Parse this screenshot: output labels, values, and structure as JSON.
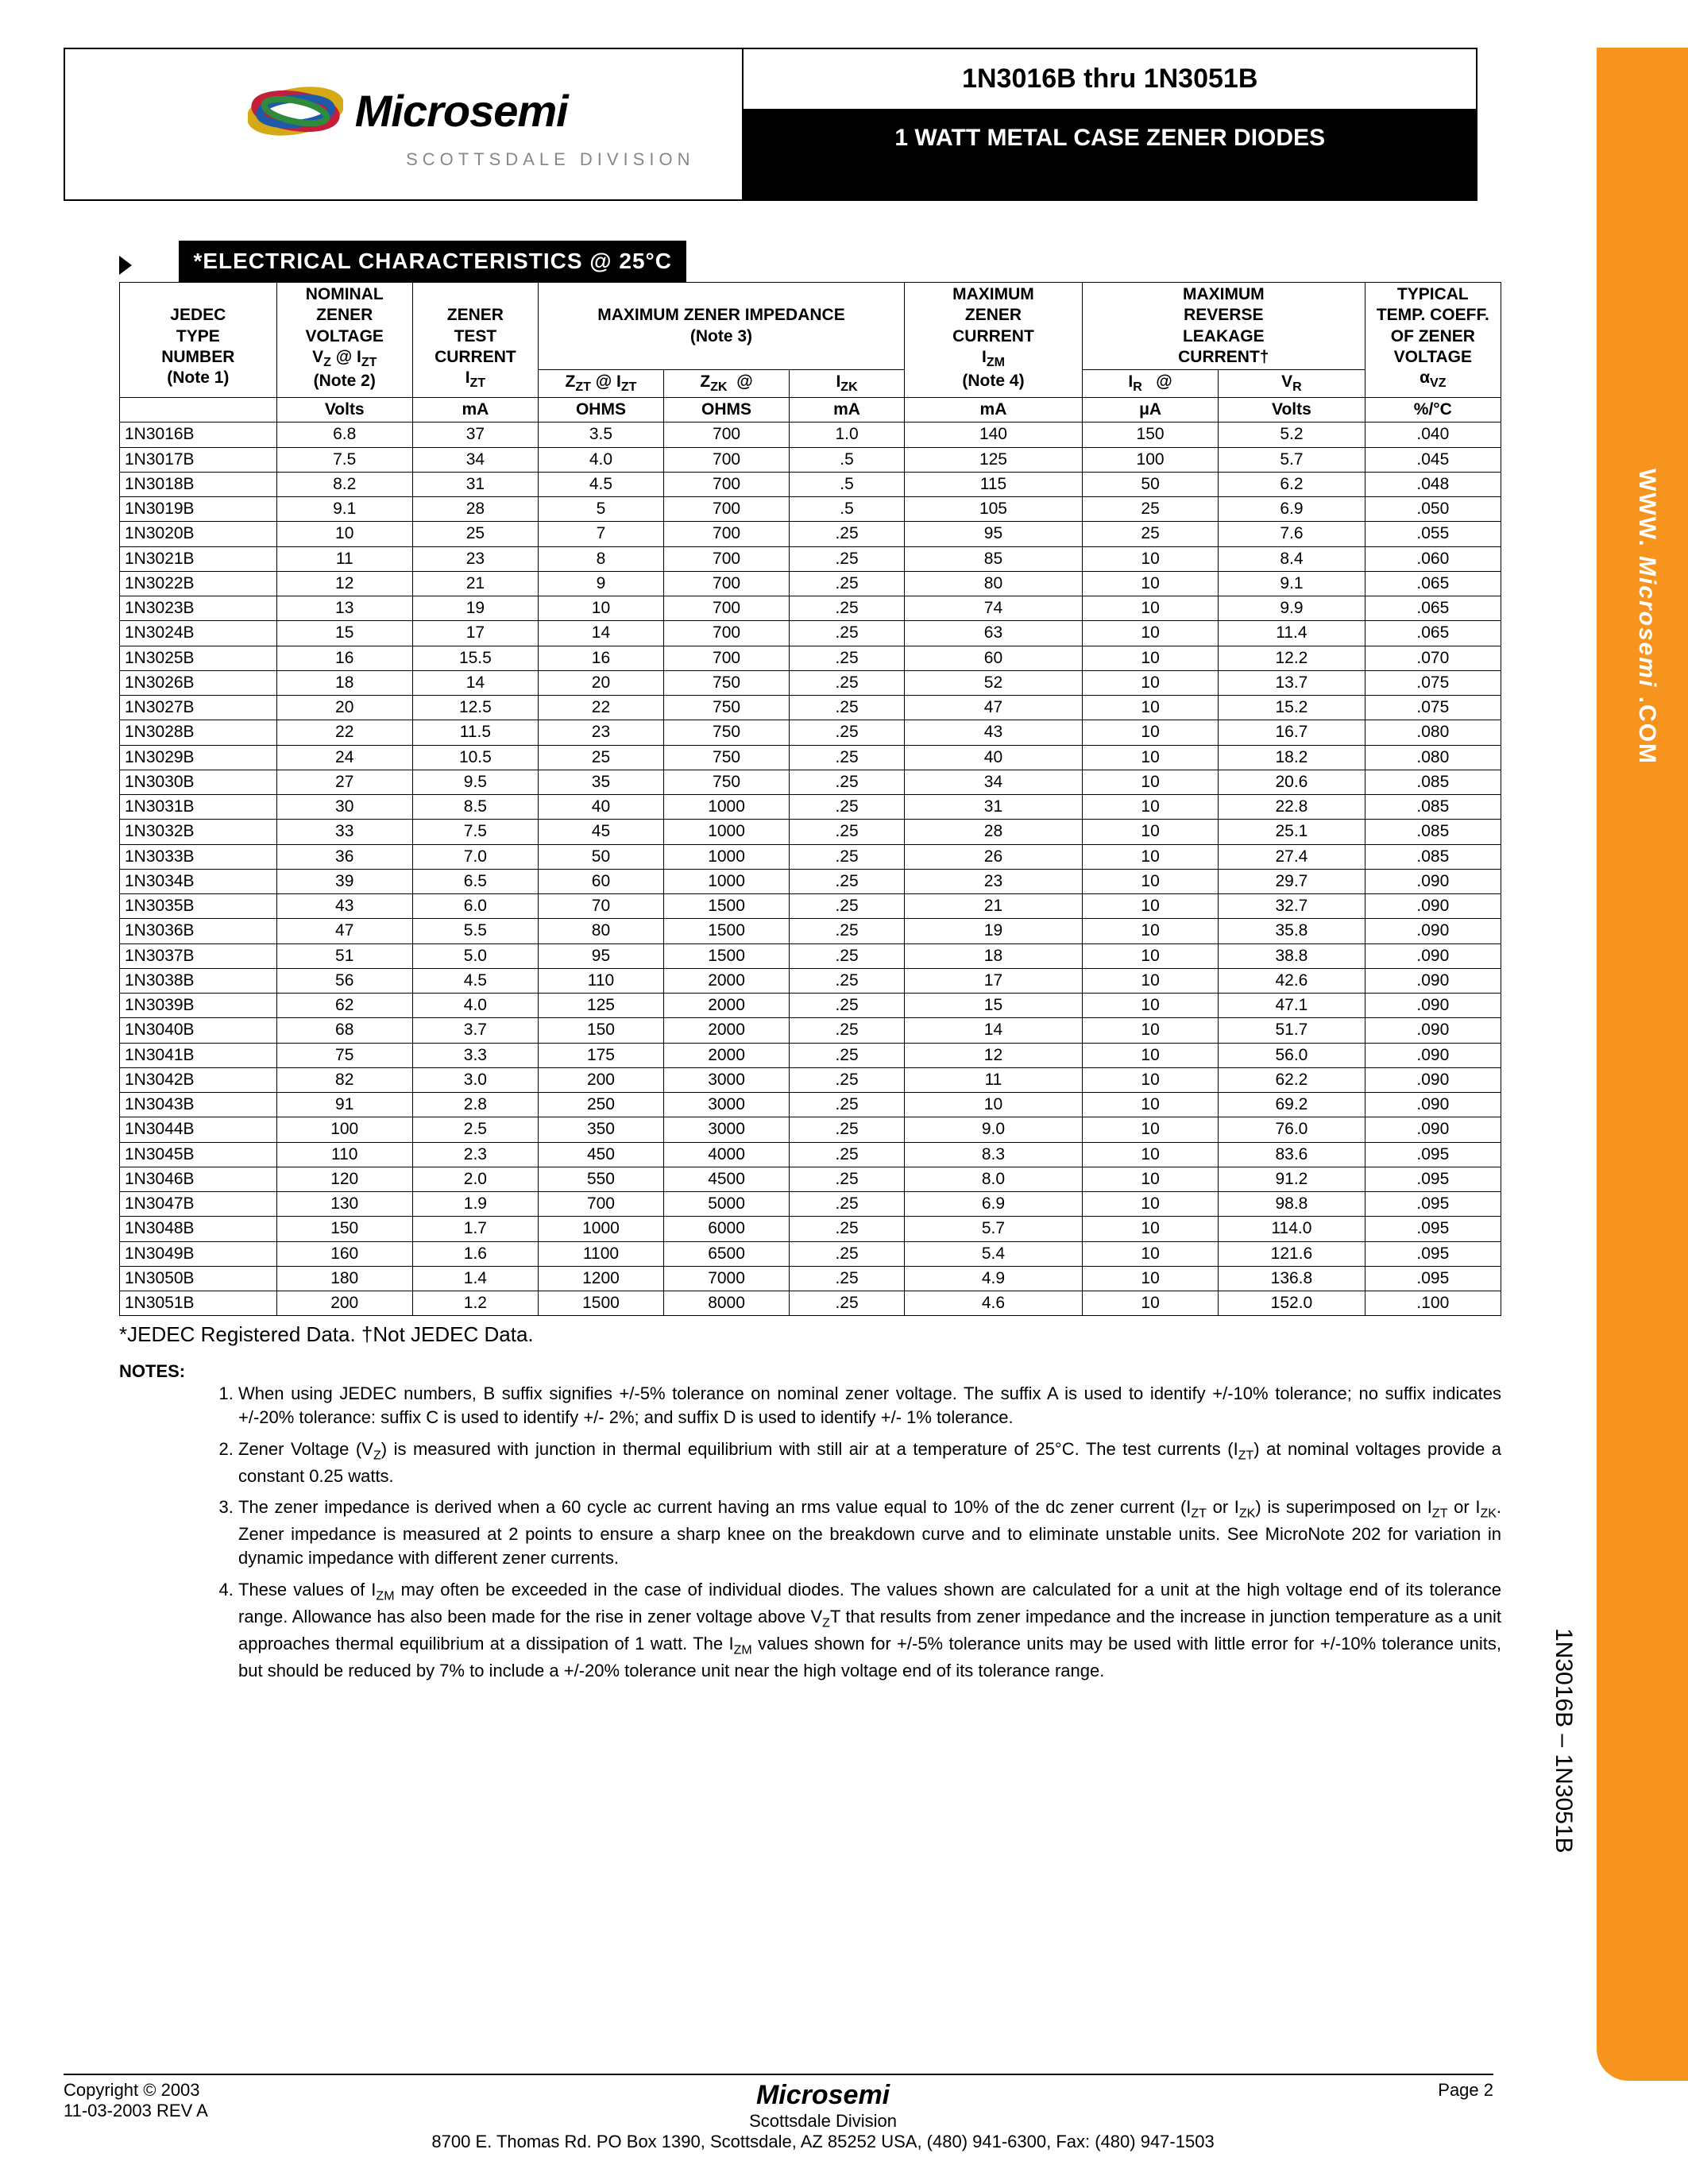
{
  "header": {
    "brand": "Microsemi",
    "division": "SCOTTSDALE DIVISION",
    "title": "1N3016B thru 1N3051B",
    "subtitle": "1 WATT METAL CASE ZENER DIODES"
  },
  "sidebar": {
    "url_www": "WWW.",
    "url_brand": "Microsemi",
    "url_com": ".COM",
    "part_range": "1N3016B – 1N3051B"
  },
  "section": {
    "title": "*ELECTRICAL CHARACTERISTICS @ 25°C"
  },
  "table": {
    "col_headers": {
      "jedec": "JEDEC TYPE NUMBER (Note 1)",
      "vz": "NOMINAL ZENER VOLTAGE",
      "vz_sub": "V_Z @ I_ZT (Note 2)",
      "izt": "ZENER TEST CURRENT",
      "izt_sub": "I_ZT",
      "mzi": "MAXIMUM ZENER IMPEDANCE (Note 3)",
      "zzt": "Z_ZT @ I_ZT",
      "zzk": "Z_ZK  @  I_ZK",
      "izm": "MAXIMUM ZENER CURRENT",
      "izm_sub": "I_ZM (Note 4)",
      "ir": "MAXIMUM REVERSE LEAKAGE CURRENT†",
      "ir_sub": "I_R   @   V_R",
      "alpha": "TYPICAL TEMP. COEFF. OF ZENER VOLTAGE",
      "alpha_sub": "α_VZ"
    },
    "unit_row": [
      "",
      "Volts",
      "mA",
      "OHMS",
      "OHMS",
      "mA",
      "mA",
      "μA",
      "Volts",
      "%/°C"
    ],
    "groups": [
      [
        [
          "1N3016B",
          "6.8",
          "37",
          "3.5",
          "700",
          "1.0",
          "140",
          "150",
          "5.2",
          ".040"
        ],
        [
          "1N3017B",
          "7.5",
          "34",
          "4.0",
          "700",
          ".5",
          "125",
          "100",
          "5.7",
          ".045"
        ],
        [
          "1N3018B",
          "8.2",
          "31",
          "4.5",
          "700",
          ".5",
          "115",
          "50",
          "6.2",
          ".048"
        ],
        [
          "1N3019B",
          "9.1",
          "28",
          "5",
          "700",
          ".5",
          "105",
          "25",
          "6.9",
          ".050"
        ]
      ],
      [
        [
          "1N3020B",
          "10",
          "25",
          "7",
          "700",
          ".25",
          "95",
          "25",
          "7.6",
          ".055"
        ],
        [
          "1N3021B",
          "11",
          "23",
          "8",
          "700",
          ".25",
          "85",
          "10",
          "8.4",
          ".060"
        ],
        [
          "1N3022B",
          "12",
          "21",
          "9",
          "700",
          ".25",
          "80",
          "10",
          "9.1",
          ".065"
        ],
        [
          "1N3023B",
          "13",
          "19",
          "10",
          "700",
          ".25",
          "74",
          "10",
          "9.9",
          ".065"
        ]
      ],
      [
        [
          "1N3024B",
          "15",
          "17",
          "14",
          "700",
          ".25",
          "63",
          "10",
          "11.4",
          ".065"
        ],
        [
          "1N3025B",
          "16",
          "15.5",
          "16",
          "700",
          ".25",
          "60",
          "10",
          "12.2",
          ".070"
        ],
        [
          "1N3026B",
          "18",
          "14",
          "20",
          "750",
          ".25",
          "52",
          "10",
          "13.7",
          ".075"
        ],
        [
          "1N3027B",
          "20",
          "12.5",
          "22",
          "750",
          ".25",
          "47",
          "10",
          "15.2",
          ".075"
        ]
      ],
      [
        [
          "1N3028B",
          "22",
          "11.5",
          "23",
          "750",
          ".25",
          "43",
          "10",
          "16.7",
          ".080"
        ],
        [
          "1N3029B",
          "24",
          "10.5",
          "25",
          "750",
          ".25",
          "40",
          "10",
          "18.2",
          ".080"
        ],
        [
          "1N3030B",
          "27",
          "9.5",
          "35",
          "750",
          ".25",
          "34",
          "10",
          "20.6",
          ".085"
        ],
        [
          "1N3031B",
          "30",
          "8.5",
          "40",
          "1000",
          ".25",
          "31",
          "10",
          "22.8",
          ".085"
        ]
      ],
      [
        [
          "1N3032B",
          "33",
          "7.5",
          "45",
          "1000",
          ".25",
          "28",
          "10",
          "25.1",
          ".085"
        ],
        [
          "1N3033B",
          "36",
          "7.0",
          "50",
          "1000",
          ".25",
          "26",
          "10",
          "27.4",
          ".085"
        ],
        [
          "1N3034B",
          "39",
          "6.5",
          "60",
          "1000",
          ".25",
          "23",
          "10",
          "29.7",
          ".090"
        ],
        [
          "1N3035B",
          "43",
          "6.0",
          "70",
          "1500",
          ".25",
          "21",
          "10",
          "32.7",
          ".090"
        ]
      ],
      [
        [
          "1N3036B",
          "47",
          "5.5",
          "80",
          "1500",
          ".25",
          "19",
          "10",
          "35.8",
          ".090"
        ],
        [
          "1N3037B",
          "51",
          "5.0",
          "95",
          "1500",
          ".25",
          "18",
          "10",
          "38.8",
          ".090"
        ],
        [
          "1N3038B",
          "56",
          "4.5",
          "110",
          "2000",
          ".25",
          "17",
          "10",
          "42.6",
          ".090"
        ],
        [
          "1N3039B",
          "62",
          "4.0",
          "125",
          "2000",
          ".25",
          "15",
          "10",
          "47.1",
          ".090"
        ]
      ],
      [
        [
          "1N3040B",
          "68",
          "3.7",
          "150",
          "2000",
          ".25",
          "14",
          "10",
          "51.7",
          ".090"
        ],
        [
          "1N3041B",
          "75",
          "3.3",
          "175",
          "2000",
          ".25",
          "12",
          "10",
          "56.0",
          ".090"
        ],
        [
          "1N3042B",
          "82",
          "3.0",
          "200",
          "3000",
          ".25",
          "11",
          "10",
          "62.2",
          ".090"
        ],
        [
          "1N3043B",
          "91",
          "2.8",
          "250",
          "3000",
          ".25",
          "10",
          "10",
          "69.2",
          ".090"
        ]
      ],
      [
        [
          "1N3044B",
          "100",
          "2.5",
          "350",
          "3000",
          ".25",
          "9.0",
          "10",
          "76.0",
          ".090"
        ],
        [
          "1N3045B",
          "110",
          "2.3",
          "450",
          "4000",
          ".25",
          "8.3",
          "10",
          "83.6",
          ".095"
        ],
        [
          "1N3046B",
          "120",
          "2.0",
          "550",
          "4500",
          ".25",
          "8.0",
          "10",
          "91.2",
          ".095"
        ],
        [
          "1N3047B",
          "130",
          "1.9",
          "700",
          "5000",
          ".25",
          "6.9",
          "10",
          "98.8",
          ".095"
        ]
      ],
      [
        [
          "1N3048B",
          "150",
          "1.7",
          "1000",
          "6000",
          ".25",
          "5.7",
          "10",
          "114.0",
          ".095"
        ],
        [
          "1N3049B",
          "160",
          "1.6",
          "1100",
          "6500",
          ".25",
          "5.4",
          "10",
          "121.6",
          ".095"
        ],
        [
          "1N3050B",
          "180",
          "1.4",
          "1200",
          "7000",
          ".25",
          "4.9",
          "10",
          "136.8",
          ".095"
        ],
        [
          "1N3051B",
          "200",
          "1.2",
          "1500",
          "8000",
          ".25",
          "4.6",
          "10",
          "152.0",
          ".100"
        ]
      ]
    ],
    "col_widths": [
      "150",
      "130",
      "120",
      "120",
      "120",
      "110",
      "170",
      "130",
      "140",
      "130"
    ]
  },
  "footnote": "*JEDEC Registered Data.     †Not JEDEC Data.",
  "notes": {
    "label": "NOTES:",
    "items": [
      "When using JEDEC numbers, B suffix signifies +/-5% tolerance on nominal zener voltage.  The suffix A is used to identify +/-10% tolerance; no suffix indicates +/-20% tolerance: suffix C is used to identify +/- 2%; and suffix D is used to identify +/- 1% tolerance.",
      "Zener Voltage (V_Z) is measured with junction in thermal equilibrium with still air at a temperature of 25°C.  The test currents (I_ZT) at nominal voltages provide a constant 0.25 watts.",
      "The zener impedance is derived when a 60 cycle ac current having an rms value equal to 10% of the dc zener current (I_ZT or I_ZK) is superimposed on I_ZT or I_ZK.  Zener impedance is measured at 2 points to ensure a sharp knee on the breakdown curve and to eliminate unstable units.  See MicroNote 202 for variation in dynamic impedance with different zener currents.",
      "These values of I_ZM may often be exceeded in the case of individual diodes.  The values shown are calculated for a unit at the high voltage end of its tolerance range.  Allowance has also been made for the rise in zener voltage above V_ZT that results from zener impedance and the increase in junction temperature as a unit approaches thermal equilibrium at a dissipation of 1 watt.  The I_ZM values shown for +/-5% tolerance units may be used with little error for +/-10% tolerance units, but should be reduced by 7% to include a +/-20% tolerance unit near the high voltage end of its tolerance range."
    ]
  },
  "footer": {
    "copyright": "Copyright © 2003",
    "rev": "11-03-2003  REV A",
    "brand": "Microsemi",
    "division": "Scottsdale Division",
    "address": "8700 E. Thomas Rd. PO Box 1390, Scottsdale, AZ 85252 USA, (480) 941-6300, Fax: (480) 947-1503",
    "page": "Page 2"
  },
  "colors": {
    "orange": "#f7941d",
    "black": "#000000",
    "gray": "#888888"
  }
}
